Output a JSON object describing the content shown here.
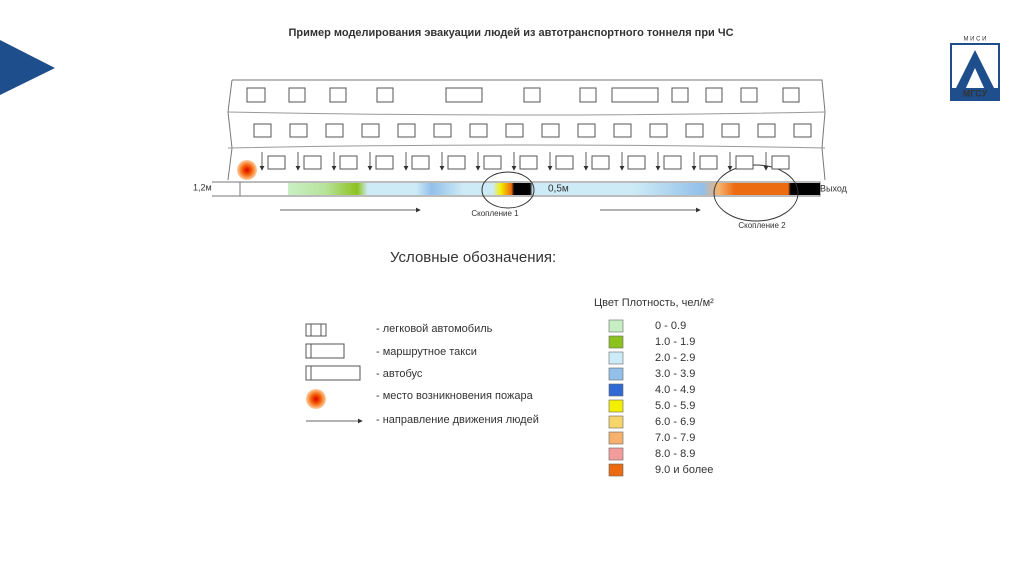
{
  "slide": {
    "title": "Пример моделирования эвакуации людей из автотранспортного тоннеля при ЧС",
    "logo": {
      "top": "М И С И",
      "bottom": "МГСУ"
    },
    "tunnel": {
      "width_label": "1,2м",
      "gap_label": "0,5м",
      "exit_label": "Выход",
      "cluster1": "Скопление 1",
      "cluster2": "Скопление 2"
    },
    "legend_title": "Условные обозначения:",
    "symbols": [
      "- легковой автомобиль",
      "- маршрутное такси",
      "- автобус",
      "- место возникновения пожара",
      "- направление движения людей"
    ],
    "density": {
      "header": "Цвет  Плотность, чел/м²",
      "items": [
        {
          "label": "0 - 0.9",
          "color": "#c8efc4"
        },
        {
          "label": "1.0 - 1.9",
          "color": "#8cc21e"
        },
        {
          "label": "2.0 - 2.9",
          "color": "#cdebf6"
        },
        {
          "label": "3.0 - 3.9",
          "color": "#92c0ea"
        },
        {
          "label": "4.0 - 4.9",
          "color": "#2f69d4"
        },
        {
          "label": "5.0 - 5.9",
          "color": "#f4ee00"
        },
        {
          "label": "6.0 - 6.9",
          "color": "#f6d56c"
        },
        {
          "label": "7.0 - 7.9",
          "color": "#f6b26c"
        },
        {
          "label": "8.0 - 8.9",
          "color": "#f29c9c"
        },
        {
          "label": "9.0 и более",
          "color": "#ec6a10"
        }
      ]
    }
  }
}
